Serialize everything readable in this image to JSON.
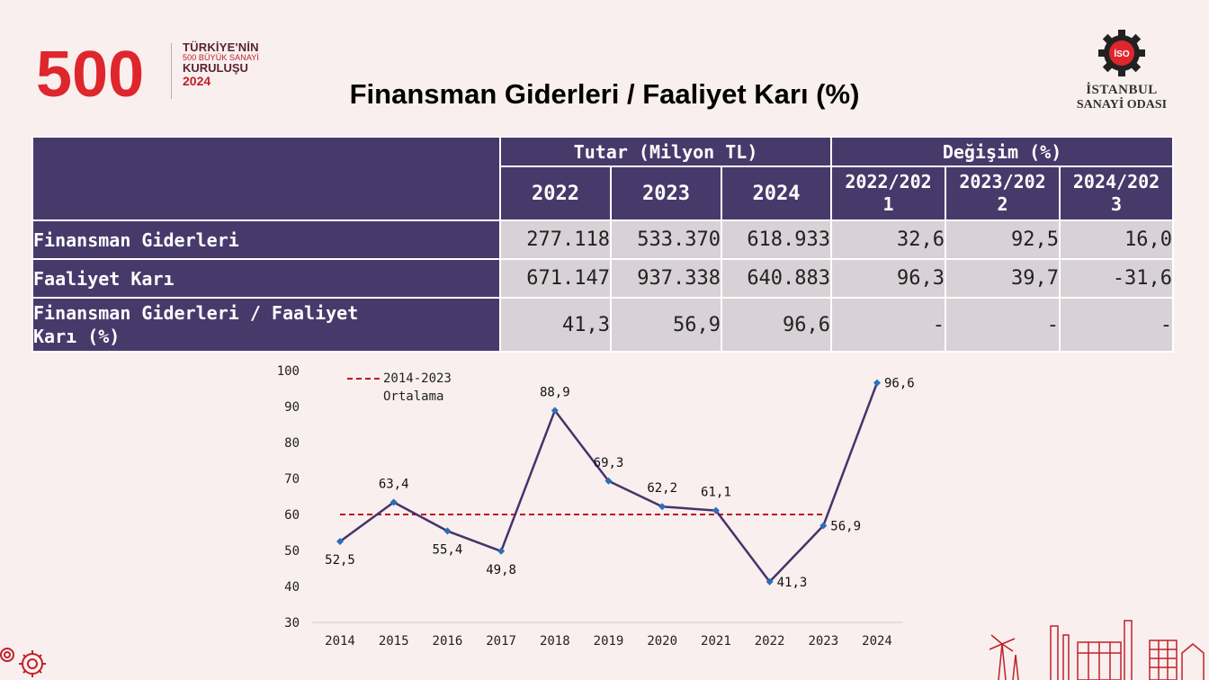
{
  "header": {
    "logo_500_text": "500",
    "logo_line1": "TÜRKİYE'NİN",
    "logo_line2": "500 BÜYÜK SANAYİ",
    "logo_line3": "KURULUŞU",
    "logo_line4": "2024",
    "iso_badge": "İSO",
    "iso_name_line1": "İSTANBUL",
    "iso_name_line2": "SANAYİ ODASI"
  },
  "title": "Finansman Giderleri / Faaliyet Karı (%)",
  "table": {
    "group_headers": [
      "Tutar (Milyon TL)",
      "Değişim (%)"
    ],
    "year_headers": [
      "2022",
      "2023",
      "2024"
    ],
    "change_headers": [
      [
        "2022/202",
        "1"
      ],
      [
        "2023/202",
        "2"
      ],
      [
        "2024/202",
        "3"
      ]
    ],
    "rows": [
      {
        "label": "Finansman Giderleri",
        "values": [
          "277.118",
          "533.370",
          "618.933",
          "32,6",
          "92,5",
          "16,0"
        ]
      },
      {
        "label": "Faaliyet Karı",
        "values": [
          "671.147",
          "937.338",
          "640.883",
          "96,3",
          "39,7",
          "-31,6"
        ]
      },
      {
        "label_lines": [
          "Finansman Giderleri / Faaliyet",
          "Karı (%)"
        ],
        "values": [
          "41,3",
          "56,9",
          "96,6",
          "-",
          "-",
          "-"
        ]
      }
    ]
  },
  "chart_data": {
    "type": "line",
    "x": [
      "2014",
      "2015",
      "2016",
      "2017",
      "2018",
      "2019",
      "2020",
      "2021",
      "2022",
      "2023",
      "2024"
    ],
    "series": [
      {
        "values": [
          52.5,
          63.4,
          55.4,
          49.8,
          88.9,
          69.3,
          62.2,
          61.1,
          41.3,
          56.9,
          96.6
        ],
        "color": "#47336b",
        "marker_color": "#2a6fba"
      }
    ],
    "point_labels": [
      "52,5",
      "63,4",
      "55,4",
      "49,8",
      "88,9",
      "69,3",
      "62,2",
      "61,1",
      "41,3",
      "56,9",
      "96,6"
    ],
    "reference_line": {
      "name_lines": [
        "2014-2023",
        "Ortalama"
      ],
      "value": 60,
      "from": "2014",
      "to": "2023",
      "color": "#c0101a"
    },
    "ylim": [
      30,
      100
    ],
    "yticks": [
      "30",
      "40",
      "50",
      "60",
      "70",
      "80",
      "90",
      "100"
    ],
    "grid": false,
    "legend": "top-left"
  }
}
